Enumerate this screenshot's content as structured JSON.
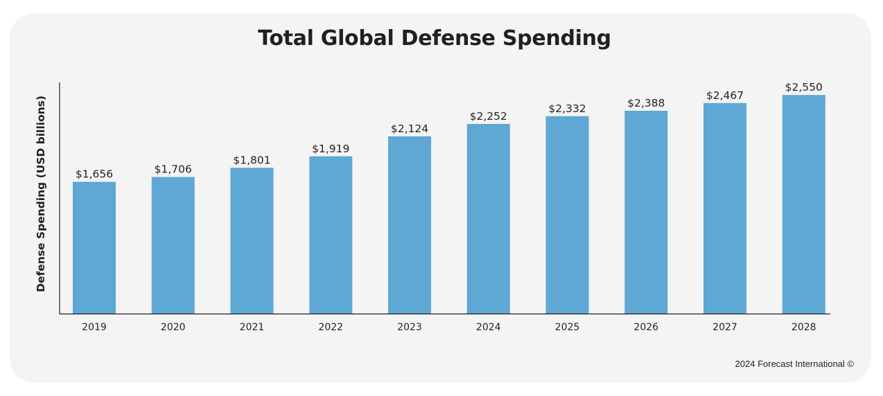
{
  "chart_data": {
    "type": "bar",
    "title": "Total Global Defense Spending",
    "xlabel": "",
    "ylabel": "Defense Spending (USD billions)",
    "categories": [
      "2019",
      "2020",
      "2021",
      "2022",
      "2023",
      "2024",
      "2025",
      "2026",
      "2027",
      "2028"
    ],
    "values": [
      1656,
      1706,
      1801,
      1919,
      2124,
      2252,
      2332,
      2388,
      2467,
      2550
    ],
    "value_labels": [
      "$1,656",
      "$1,706",
      "$1,801",
      "$1,919",
      "$2,124",
      "$2,252",
      "$2,332",
      "$2,388",
      "$2,467",
      "$2,550"
    ],
    "ylim": [
      300,
      3150
    ],
    "grid": false,
    "bar_color": "#5fa7d5"
  },
  "footer": {
    "copyright": "2024 Forecast International ©"
  }
}
